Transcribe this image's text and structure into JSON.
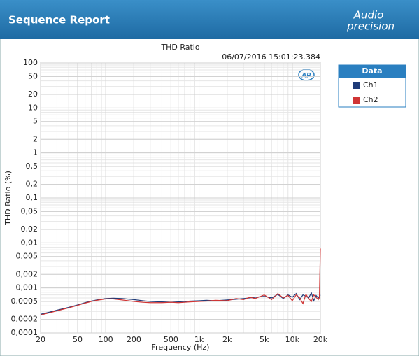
{
  "header": {
    "title": "Sequence Report",
    "logo_top": "Audio",
    "logo_bottom": "precision"
  },
  "chart_data": {
    "type": "line",
    "title": "THD Ratio",
    "timestamp": "06/07/2016 15:01:23.384",
    "plot_logo": "AP",
    "x_label": "Frequency (Hz)",
    "y_label": "THD Ratio (%)",
    "log_x": true,
    "log_y": true,
    "grid": true,
    "legend_title": "Data",
    "xlim": [
      20,
      20000
    ],
    "ylim": [
      0.0001,
      100
    ],
    "xticks": [
      20,
      50,
      100,
      200,
      500,
      {
        "value": 1000,
        "label": "1k"
      },
      {
        "value": 2000,
        "label": "2k"
      },
      {
        "value": 5000,
        "label": "5k"
      },
      {
        "value": 10000,
        "label": "10k"
      },
      {
        "value": 20000,
        "label": "20k"
      }
    ],
    "yticks": [
      100,
      50,
      20,
      10,
      5,
      2,
      1,
      {
        "value": 0.5,
        "label": "0,5"
      },
      {
        "value": 0.2,
        "label": "0,2"
      },
      {
        "value": 0.1,
        "label": "0,1"
      },
      {
        "value": 0.05,
        "label": "0,05"
      },
      {
        "value": 0.02,
        "label": "0,02"
      },
      {
        "value": 0.01,
        "label": "0,01"
      },
      {
        "value": 0.005,
        "label": "0,005"
      },
      {
        "value": 0.002,
        "label": "0,002"
      },
      {
        "value": 0.001,
        "label": "0,001"
      },
      {
        "value": 0.0005,
        "label": "0,0005"
      },
      {
        "value": 0.0002,
        "label": "0,0002"
      },
      {
        "value": 0.0001,
        "label": "0,0001"
      }
    ],
    "x": [
      20,
      25,
      30,
      40,
      50,
      60,
      70,
      80,
      100,
      120,
      150,
      200,
      250,
      300,
      400,
      500,
      600,
      700,
      800,
      1000,
      1200,
      1500,
      2000,
      2500,
      3000,
      3500,
      4000,
      5000,
      6000,
      7000,
      8000,
      9000,
      10000,
      11000,
      12000,
      13000,
      14000,
      15000,
      16000,
      17000,
      18000,
      19000,
      19500,
      20000
    ],
    "series": [
      {
        "name": "Ch1",
        "color": "#1f3b78",
        "values": [
          0.00026,
          0.00029,
          0.00032,
          0.00037,
          0.00042,
          0.00047,
          0.00051,
          0.00054,
          0.00058,
          0.00059,
          0.00058,
          0.00055,
          0.00052,
          0.0005,
          0.00049,
          0.00048,
          0.00049,
          0.0005,
          0.00051,
          0.00052,
          0.00053,
          0.00052,
          0.00054,
          0.00056,
          0.00058,
          0.0006,
          0.00062,
          0.00065,
          0.0006,
          0.00072,
          0.00058,
          0.0007,
          0.00062,
          0.00075,
          0.00055,
          0.0007,
          0.00065,
          0.0006,
          0.00078,
          0.00052,
          0.00068,
          0.0006,
          0.00065,
          0.0007
        ]
      },
      {
        "name": "Ch2",
        "color": "#d03535",
        "values": [
          0.00025,
          0.00028,
          0.00031,
          0.00036,
          0.00041,
          0.00046,
          0.0005,
          0.00053,
          0.00057,
          0.00057,
          0.00054,
          0.0005,
          0.00048,
          0.00047,
          0.00047,
          0.00048,
          0.00047,
          0.00048,
          0.00049,
          0.0005,
          0.00051,
          0.00053,
          0.00052,
          0.00058,
          0.00055,
          0.00062,
          0.00058,
          0.0007,
          0.00055,
          0.00075,
          0.0006,
          0.00068,
          0.00052,
          0.0007,
          0.0006,
          0.00045,
          0.00072,
          0.00058,
          0.0005,
          0.0007,
          0.00062,
          0.00055,
          0.0006,
          0.0075
        ]
      }
    ]
  }
}
